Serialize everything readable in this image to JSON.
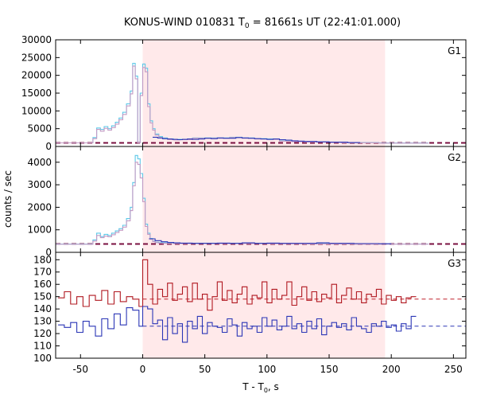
{
  "chart_data": [
    {
      "type": "line",
      "panel": "G1",
      "title_main": "KONUS-WIND 010831 T",
      "title_sub": "0",
      "title_rest": " = 81661s UT (22:41:01.000)",
      "panel_label": "G1",
      "xlim": [
        -70,
        260
      ],
      "ylim": [
        0,
        30000
      ],
      "yticks": [
        0,
        5000,
        10000,
        15000,
        20000,
        25000,
        30000
      ],
      "shade_range": [
        0,
        195
      ],
      "shade_color": "#ffe9ea",
      "background": {
        "value": 1000,
        "color": "#7a1040"
      },
      "series": [
        {
          "color": "#5cc8e8",
          "x": [
            -70,
            -45,
            -40,
            -37,
            -34,
            -31,
            -28,
            -25,
            -22,
            -19,
            -16,
            -13,
            -10,
            -8,
            -6,
            -4,
            -2,
            0,
            2,
            4,
            6,
            8,
            10,
            13,
            16,
            20,
            25,
            30,
            40,
            50,
            60,
            70,
            80,
            90,
            100,
            110,
            120,
            130,
            140,
            150,
            160,
            170,
            180,
            190,
            200,
            210,
            220
          ],
          "y": [
            1000,
            1000,
            2500,
            5200,
            4800,
            5600,
            5000,
            5800,
            6800,
            8000,
            9600,
            12000,
            15600,
            23400,
            19800,
            1000,
            15000,
            23200,
            22000,
            12000,
            7200,
            5000,
            3500,
            2800,
            2400,
            2100,
            2000,
            2000,
            2400,
            2400,
            2400,
            2600,
            2400,
            2200,
            2100,
            1600,
            1400,
            1300,
            1300,
            1200,
            1100,
            1100,
            1100,
            1000,
            1000,
            1000,
            1000
          ]
        },
        {
          "color": "#c49ac4",
          "x": [
            -70,
            -45,
            -40,
            -37,
            -34,
            -31,
            -28,
            -25,
            -22,
            -19,
            -16,
            -13,
            -10,
            -8,
            -6,
            -4,
            -2,
            0,
            2,
            4,
            6,
            8,
            10,
            13,
            16,
            20,
            25,
            30,
            40,
            50,
            60,
            70,
            80,
            90,
            100,
            110,
            120,
            130,
            140,
            150,
            160,
            170,
            180,
            190,
            200,
            210,
            220
          ],
          "y": [
            1000,
            1000,
            2200,
            4800,
            4300,
            5100,
            4600,
            5300,
            6300,
            7500,
            9000,
            11400,
            14800,
            22600,
            19000,
            1000,
            14300,
            22200,
            21000,
            11200,
            6600,
            4600,
            3200,
            2500,
            2200,
            1950,
            1850,
            1900,
            2300,
            2300,
            2300,
            2500,
            2300,
            2100,
            2000,
            1500,
            1350,
            1250,
            1250,
            1150,
            1050,
            1050,
            1050,
            950,
            950,
            950,
            950
          ]
        },
        {
          "color": "#2b36b6",
          "x": [
            8,
            12,
            16,
            20,
            24,
            28,
            32,
            36,
            40,
            45,
            50,
            55,
            60,
            65,
            70,
            75,
            80,
            85,
            90,
            95,
            100,
            105,
            110,
            115,
            120,
            125,
            130,
            135,
            140,
            145,
            150,
            155,
            160,
            165,
            170
          ],
          "y": [
            2600,
            2400,
            2200,
            2100,
            2000,
            1900,
            2000,
            2100,
            2000,
            2100,
            2300,
            2200,
            2400,
            2300,
            2300,
            2500,
            2400,
            2300,
            2200,
            2100,
            2000,
            2100,
            1900,
            1800,
            1600,
            1500,
            1400,
            1400,
            1300,
            1300,
            1200,
            1200,
            1200,
            1100,
            1100
          ]
        }
      ]
    },
    {
      "type": "line",
      "panel": "G2",
      "panel_label": "G2",
      "xlim": [
        -70,
        260
      ],
      "ylim": [
        0,
        4700
      ],
      "yticks": [
        0,
        1000,
        2000,
        3000,
        4000
      ],
      "shade_range": [
        0,
        195
      ],
      "shade_color": "#ffe9ea",
      "background": {
        "value": 370,
        "color": "#7a1040"
      },
      "series": [
        {
          "color": "#5cc8e8",
          "x": [
            -70,
            -45,
            -40,
            -37,
            -34,
            -31,
            -28,
            -25,
            -22,
            -19,
            -16,
            -13,
            -10,
            -8,
            -6,
            -4,
            -2,
            0,
            2,
            4,
            6,
            8,
            10,
            13,
            16,
            20,
            25,
            30,
            40,
            50,
            60,
            70,
            80,
            90,
            100,
            110,
            120,
            130,
            140,
            150,
            160,
            170,
            180,
            190,
            200,
            210,
            220
          ],
          "y": [
            370,
            370,
            550,
            850,
            700,
            800,
            750,
            850,
            950,
            1050,
            1200,
            1500,
            2000,
            3100,
            4300,
            4150,
            3500,
            2400,
            1250,
            850,
            620,
            500,
            450,
            430,
            420,
            410,
            400,
            400,
            400,
            400,
            400,
            400,
            400,
            400,
            390,
            390,
            390,
            380,
            380,
            380,
            380,
            370,
            370,
            370,
            370,
            370,
            370
          ]
        },
        {
          "color": "#c49ac4",
          "x": [
            -70,
            -45,
            -40,
            -37,
            -34,
            -31,
            -28,
            -25,
            -22,
            -19,
            -16,
            -13,
            -10,
            -8,
            -6,
            -4,
            -2,
            0,
            2,
            4,
            6,
            8,
            10,
            13,
            16,
            20,
            25,
            30,
            40,
            50,
            60,
            70,
            80,
            90,
            100,
            110,
            120,
            130,
            140,
            150,
            160,
            170,
            180,
            190,
            200,
            210,
            220
          ],
          "y": [
            360,
            360,
            500,
            750,
            650,
            720,
            690,
            780,
            880,
            980,
            1120,
            1400,
            1850,
            2950,
            4000,
            3900,
            3300,
            2250,
            1150,
            800,
            580,
            480,
            430,
            410,
            400,
            395,
            390,
            390,
            390,
            390,
            390,
            390,
            390,
            390,
            380,
            380,
            380,
            370,
            370,
            370,
            370,
            365,
            365,
            365,
            365,
            365,
            365
          ]
        },
        {
          "color": "#2b36b6",
          "x": [
            5,
            10,
            15,
            20,
            25,
            30,
            40,
            50,
            60,
            70,
            80,
            90,
            100,
            110,
            120,
            130,
            140,
            150,
            160,
            170,
            180,
            190
          ],
          "y": [
            600,
            520,
            470,
            440,
            420,
            410,
            400,
            400,
            410,
            400,
            420,
            400,
            410,
            400,
            400,
            400,
            420,
            400,
            400,
            390,
            390,
            380
          ]
        }
      ]
    },
    {
      "type": "line",
      "panel": "G3",
      "panel_label": "G3",
      "xlim": [
        -70,
        260
      ],
      "ylim": [
        100,
        186
      ],
      "yticks": [
        100,
        110,
        120,
        130,
        140,
        150,
        160,
        170,
        180
      ],
      "xticks": [
        -50,
        0,
        50,
        100,
        150,
        200,
        250
      ],
      "xlabel_main": "T - T",
      "xlabel_sub": "0",
      "xlabel_rest": ", s",
      "shade_range": [
        0,
        195
      ],
      "shade_color": "#ffe9ea",
      "background_lines": [
        {
          "value": 148,
          "color": "#c0202a"
        },
        {
          "value": 126,
          "color": "#2b36b6"
        }
      ],
      "series": [
        {
          "color": "#b01820",
          "x": [
            -68,
            -63,
            -58,
            -53,
            -48,
            -43,
            -38,
            -33,
            -28,
            -23,
            -18,
            -13,
            -8,
            -3,
            0,
            4,
            8,
            12,
            16,
            20,
            24,
            28,
            32,
            36,
            40,
            44,
            48,
            52,
            56,
            60,
            64,
            68,
            72,
            76,
            80,
            84,
            88,
            92,
            96,
            100,
            104,
            108,
            112,
            116,
            120,
            124,
            128,
            132,
            136,
            140,
            144,
            148,
            152,
            156,
            160,
            164,
            168,
            172,
            176,
            180,
            184,
            188,
            192,
            196,
            200,
            204,
            208,
            212,
            216
          ],
          "y": [
            149,
            154,
            144,
            150,
            142,
            151,
            147,
            155,
            144,
            154,
            146,
            150,
            148,
            142,
            180,
            160,
            144,
            156,
            150,
            161,
            147,
            152,
            158,
            146,
            161,
            148,
            152,
            139,
            150,
            162,
            147,
            155,
            145,
            152,
            158,
            144,
            151,
            149,
            162,
            145,
            156,
            148,
            151,
            162,
            143,
            150,
            158,
            147,
            154,
            146,
            152,
            149,
            160,
            145,
            151,
            157,
            148,
            154,
            145,
            152,
            150,
            156,
            144,
            151,
            147,
            150,
            145,
            149,
            150
          ]
        },
        {
          "color": "#2b36b6",
          "x": [
            -68,
            -63,
            -58,
            -53,
            -48,
            -43,
            -38,
            -33,
            -28,
            -23,
            -18,
            -13,
            -8,
            -3,
            0,
            4,
            8,
            12,
            16,
            20,
            24,
            28,
            32,
            36,
            40,
            44,
            48,
            52,
            56,
            60,
            64,
            68,
            72,
            76,
            80,
            84,
            88,
            92,
            96,
            100,
            104,
            108,
            112,
            116,
            120,
            124,
            128,
            132,
            136,
            140,
            144,
            148,
            152,
            156,
            160,
            164,
            168,
            172,
            176,
            180,
            184,
            188,
            192,
            196,
            200,
            204,
            208,
            212,
            216
          ],
          "y": [
            127,
            125,
            129,
            121,
            130,
            126,
            118,
            132,
            124,
            136,
            127,
            141,
            139,
            126,
            142,
            140,
            128,
            131,
            115,
            133,
            120,
            128,
            113,
            130,
            124,
            134,
            120,
            129,
            126,
            125,
            121,
            132,
            127,
            118,
            129,
            124,
            126,
            121,
            133,
            126,
            131,
            123,
            126,
            134,
            124,
            128,
            121,
            130,
            124,
            132,
            119,
            126,
            129,
            125,
            128,
            123,
            133,
            126,
            124,
            121,
            128,
            126,
            130,
            125,
            127,
            122,
            128,
            124,
            134
          ]
        }
      ]
    }
  ]
}
